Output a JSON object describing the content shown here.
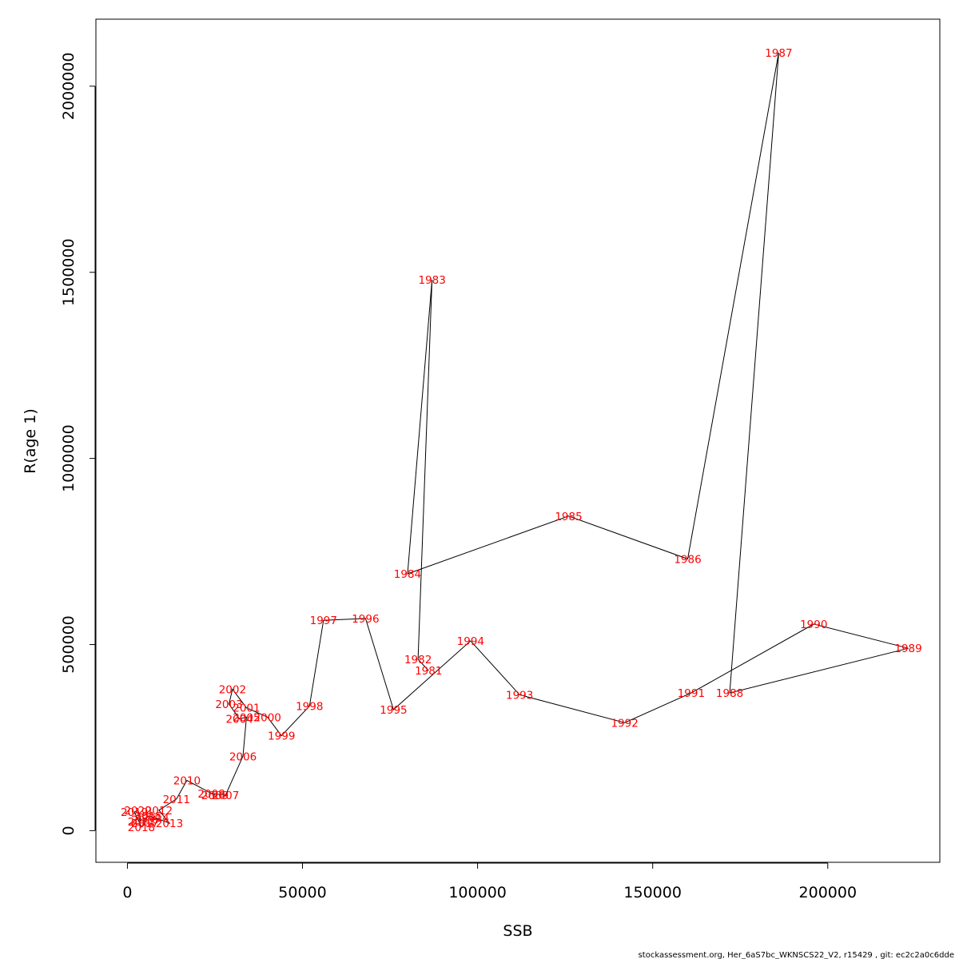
{
  "chart_data": {
    "type": "scatter",
    "xlabel": "SSB",
    "ylabel": "R(age 1)",
    "xlim": [
      -9000,
      232000
    ],
    "ylim": [
      -85000,
      2180000
    ],
    "x_ticks": [
      0,
      50000,
      100000,
      150000,
      200000
    ],
    "x_tick_labels": [
      "0",
      "50000",
      "100000",
      "150000",
      "200000"
    ],
    "y_ticks": [
      0,
      500000,
      1000000,
      1500000,
      2000000
    ],
    "y_tick_labels": [
      "0",
      "500000",
      "1000000",
      "1500000",
      "2000000"
    ],
    "connected": true,
    "line_color": "#000000",
    "label_color": "#ff0000",
    "points": [
      {
        "label": "1981",
        "x": 86000,
        "y": 430000
      },
      {
        "label": "1982",
        "x": 83000,
        "y": 460000
      },
      {
        "label": "1983",
        "x": 87000,
        "y": 1480000
      },
      {
        "label": "1984",
        "x": 80000,
        "y": 690000
      },
      {
        "label": "1985",
        "x": 126000,
        "y": 845000
      },
      {
        "label": "1986",
        "x": 160000,
        "y": 730000
      },
      {
        "label": "1987",
        "x": 186000,
        "y": 2090000
      },
      {
        "label": "1988",
        "x": 172000,
        "y": 370000
      },
      {
        "label": "1989",
        "x": 223000,
        "y": 490000
      },
      {
        "label": "1990",
        "x": 196000,
        "y": 555000
      },
      {
        "label": "1991",
        "x": 161000,
        "y": 370000
      },
      {
        "label": "1992",
        "x": 142000,
        "y": 290000
      },
      {
        "label": "1993",
        "x": 112000,
        "y": 365000
      },
      {
        "label": "1994",
        "x": 98000,
        "y": 510000
      },
      {
        "label": "1995",
        "x": 76000,
        "y": 325000
      },
      {
        "label": "1996",
        "x": 68000,
        "y": 570000
      },
      {
        "label": "1997",
        "x": 56000,
        "y": 565000
      },
      {
        "label": "1998",
        "x": 52000,
        "y": 335000
      },
      {
        "label": "1999",
        "x": 44000,
        "y": 255000
      },
      {
        "label": "2000",
        "x": 40000,
        "y": 305000
      },
      {
        "label": "2001",
        "x": 34000,
        "y": 330000
      },
      {
        "label": "2002",
        "x": 30000,
        "y": 380000
      },
      {
        "label": "2003",
        "x": 29000,
        "y": 340000
      },
      {
        "label": "2004",
        "x": 32000,
        "y": 300000
      },
      {
        "label": "2005",
        "x": 34000,
        "y": 305000
      },
      {
        "label": "2006",
        "x": 33000,
        "y": 200000
      },
      {
        "label": "2007",
        "x": 28000,
        "y": 95000
      },
      {
        "label": "2008",
        "x": 24000,
        "y": 100000
      },
      {
        "label": "2009",
        "x": 25000,
        "y": 95000
      },
      {
        "label": "2010",
        "x": 17000,
        "y": 135000
      },
      {
        "label": "2011",
        "x": 14000,
        "y": 85000
      },
      {
        "label": "2012",
        "x": 9000,
        "y": 55000
      },
      {
        "label": "2013",
        "x": 12000,
        "y": 20000
      },
      {
        "label": "2014",
        "x": 8000,
        "y": 35000
      },
      {
        "label": "2015",
        "x": 6000,
        "y": 40000
      },
      {
        "label": "2016",
        "x": 5000,
        "y": 30000
      },
      {
        "label": "2017",
        "x": 5000,
        "y": 20000
      },
      {
        "label": "2018",
        "x": 4000,
        "y": 10000
      },
      {
        "label": "2019",
        "x": 2000,
        "y": 50000
      },
      {
        "label": "2020",
        "x": 3000,
        "y": 55000
      },
      {
        "label": "2021",
        "x": 4000,
        "y": 25000
      }
    ]
  },
  "footer": {
    "text": "stockassessment.org, Her_6aS7bc_WKNSCS22_V2, r15429 , git: ec2c2a0c6dde"
  }
}
